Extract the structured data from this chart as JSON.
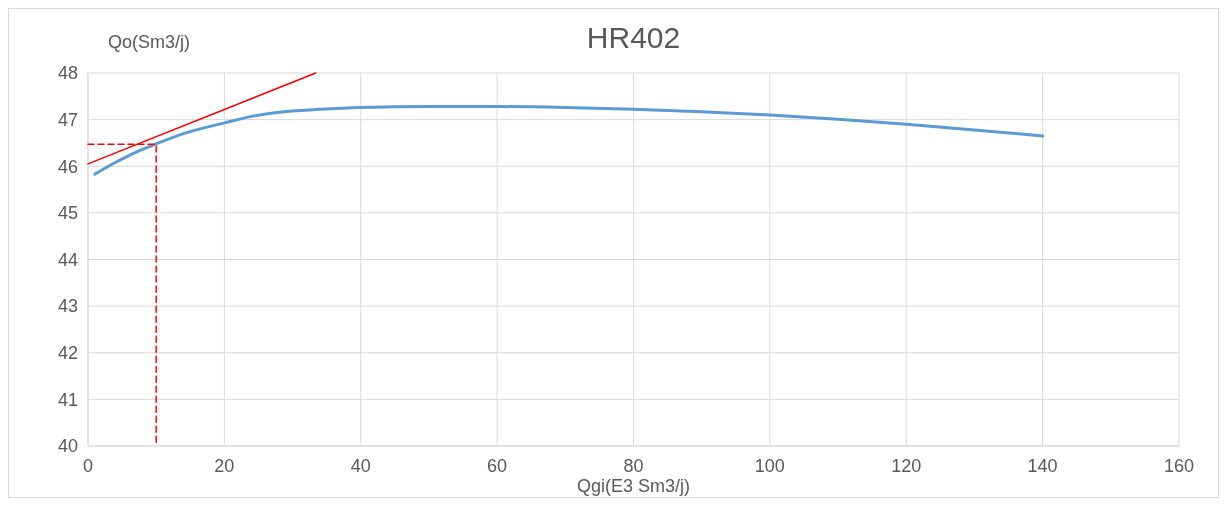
{
  "chart_data": {
    "type": "line",
    "title": "HR402",
    "xlabel": "Qgi(E3 Sm3/j)",
    "ylabel": "Qo(Sm3/j)",
    "xlim": [
      0,
      160
    ],
    "xticks": [
      0,
      20,
      40,
      60,
      80,
      100,
      120,
      140,
      160
    ],
    "ylim": [
      40,
      48
    ],
    "yticks": [
      40,
      41,
      42,
      43,
      44,
      45,
      46,
      47,
      48
    ],
    "grid": true,
    "marker": "none",
    "series": [
      {
        "color": "#5b9bd5",
        "line_style": "solid",
        "x": [
          1,
          4,
          7,
          10,
          14,
          20,
          24,
          28,
          34,
          40,
          50,
          60,
          70,
          80,
          90,
          100,
          110,
          120,
          130,
          140
        ],
        "values": [
          45.83,
          46.08,
          46.3,
          46.48,
          46.7,
          46.93,
          47.07,
          47.16,
          47.22,
          47.26,
          47.28,
          47.28,
          47.26,
          47.22,
          47.17,
          47.1,
          47.01,
          46.9,
          46.78,
          46.65
        ]
      },
      {
        "color": "#ff0000",
        "line_style": "solid",
        "x": [
          0,
          33.4
        ],
        "values": [
          46.05,
          48
        ]
      },
      {
        "color": "#ff0000",
        "line_style": "dashed",
        "x": [
          0,
          10,
          10
        ],
        "values": [
          46.47,
          46.47,
          40
        ]
      }
    ]
  }
}
